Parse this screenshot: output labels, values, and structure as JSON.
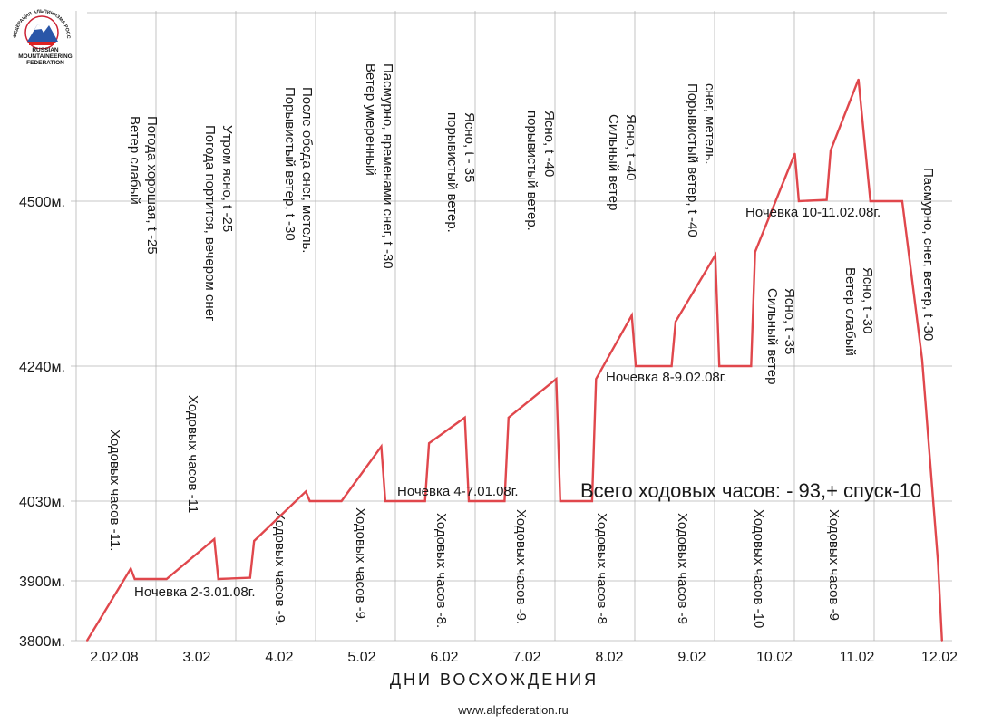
{
  "logo": {
    "ring_text": "ФЕДЕРАЦИЯ АЛЬПИНИЗМА РОССИИ",
    "line1": "RUSSIAN",
    "line2": "MOUNTAINEERING",
    "line3": "FEDERATION"
  },
  "footer": {
    "url": "www.alpfederation.ru"
  },
  "chart_data": {
    "type": "line",
    "xlabel": "ДНИ ВОСХОЖДЕНИЯ",
    "ylabel": "",
    "categories": [
      "2.02.08",
      "3.02",
      "4.02",
      "5.02",
      "6.02",
      "7.02",
      "8.02",
      "9.02",
      "10.02",
      "11.02",
      "12.02"
    ],
    "y_ticks": [
      {
        "value": 3800,
        "label": "3800м."
      },
      {
        "value": 3900,
        "label": "3900м."
      },
      {
        "value": 4030,
        "label": "4030м."
      },
      {
        "value": 4240,
        "label": "4240м."
      },
      {
        "value": 4500,
        "label": "4500м."
      }
    ],
    "ylim": [
      3800,
      4700
    ],
    "series": [
      {
        "color": "#e0474c",
        "points": [
          [
            0,
            3800
          ],
          [
            0.55,
            3920
          ],
          [
            0.6,
            3903
          ],
          [
            1.0,
            3903
          ],
          [
            1.6,
            3968
          ],
          [
            1.65,
            3903
          ],
          [
            2.05,
            3905
          ],
          [
            2.1,
            3965
          ],
          [
            2.75,
            4045
          ],
          [
            2.8,
            4030
          ],
          [
            3.2,
            4030
          ],
          [
            3.7,
            4115
          ],
          [
            3.75,
            4030
          ],
          [
            4.25,
            4030
          ],
          [
            4.3,
            4120
          ],
          [
            4.75,
            4160
          ],
          [
            4.8,
            4030
          ],
          [
            5.25,
            4030
          ],
          [
            5.3,
            4160
          ],
          [
            5.9,
            4220
          ],
          [
            5.95,
            4030
          ],
          [
            6.35,
            4030
          ],
          [
            6.4,
            4220
          ],
          [
            6.85,
            4320
          ],
          [
            6.9,
            4240
          ],
          [
            7.35,
            4240
          ],
          [
            7.4,
            4310
          ],
          [
            7.9,
            4415
          ],
          [
            7.95,
            4240
          ],
          [
            8.35,
            4240
          ],
          [
            8.4,
            4420
          ],
          [
            8.9,
            4575
          ],
          [
            8.95,
            4500
          ],
          [
            9.3,
            4502
          ],
          [
            9.35,
            4580
          ],
          [
            9.7,
            4692
          ],
          [
            9.85,
            4500
          ],
          [
            10.25,
            4500
          ],
          [
            10.5,
            4250
          ],
          [
            10.7,
            3930
          ],
          [
            10.75,
            3800
          ]
        ]
      }
    ],
    "weather_annotations": [
      "Погода хорошая, t -25\nВетер слабый",
      "Утром ясно, t -25\nПогода портится, вечером снег",
      "После обеда снег, метель.\nПорывистый ветер, t -30",
      "Пасмурно, временами снег, t -30\nВетер умеренный",
      "Ясно, t - 35\nпорывистый ветер.",
      "Ясно, t -40\nпорывистый ветер.",
      "Ясно, t -40\nСильный ветер",
      "снег, метель.\nПорывистый ветер, t -40",
      "Ясно, t -35\nСильный ветер",
      "Ясно, t -30\nВетер слабый",
      "Пасмурно, снег, ветер, t -30"
    ],
    "hours_annotations": [
      "Ходовых часов -11.",
      "Ходовых часов -11",
      "Ходовых часов -9.",
      "Ходовых часов -9.",
      "Ходовых часов -8.",
      "Ходовых часов -9.",
      "Ходовых часов -8",
      "Ходовых часов -9",
      "Ходовых часов -10",
      "Ходовых часов -9"
    ],
    "camp_labels": [
      {
        "text": "Ночевка  2-3.01.08г.",
        "altitude": 3900
      },
      {
        "text": "Ночевка  4-7.01.08г.",
        "altitude": 4030
      },
      {
        "text": "Ночевка  8-9.02.08г.",
        "altitude": 4240
      },
      {
        "text": "Ночевка  10-11.02.08г.",
        "altitude": 4500
      }
    ],
    "summary": "Всего ходовых часов:  - 93,+ спуск-10"
  }
}
